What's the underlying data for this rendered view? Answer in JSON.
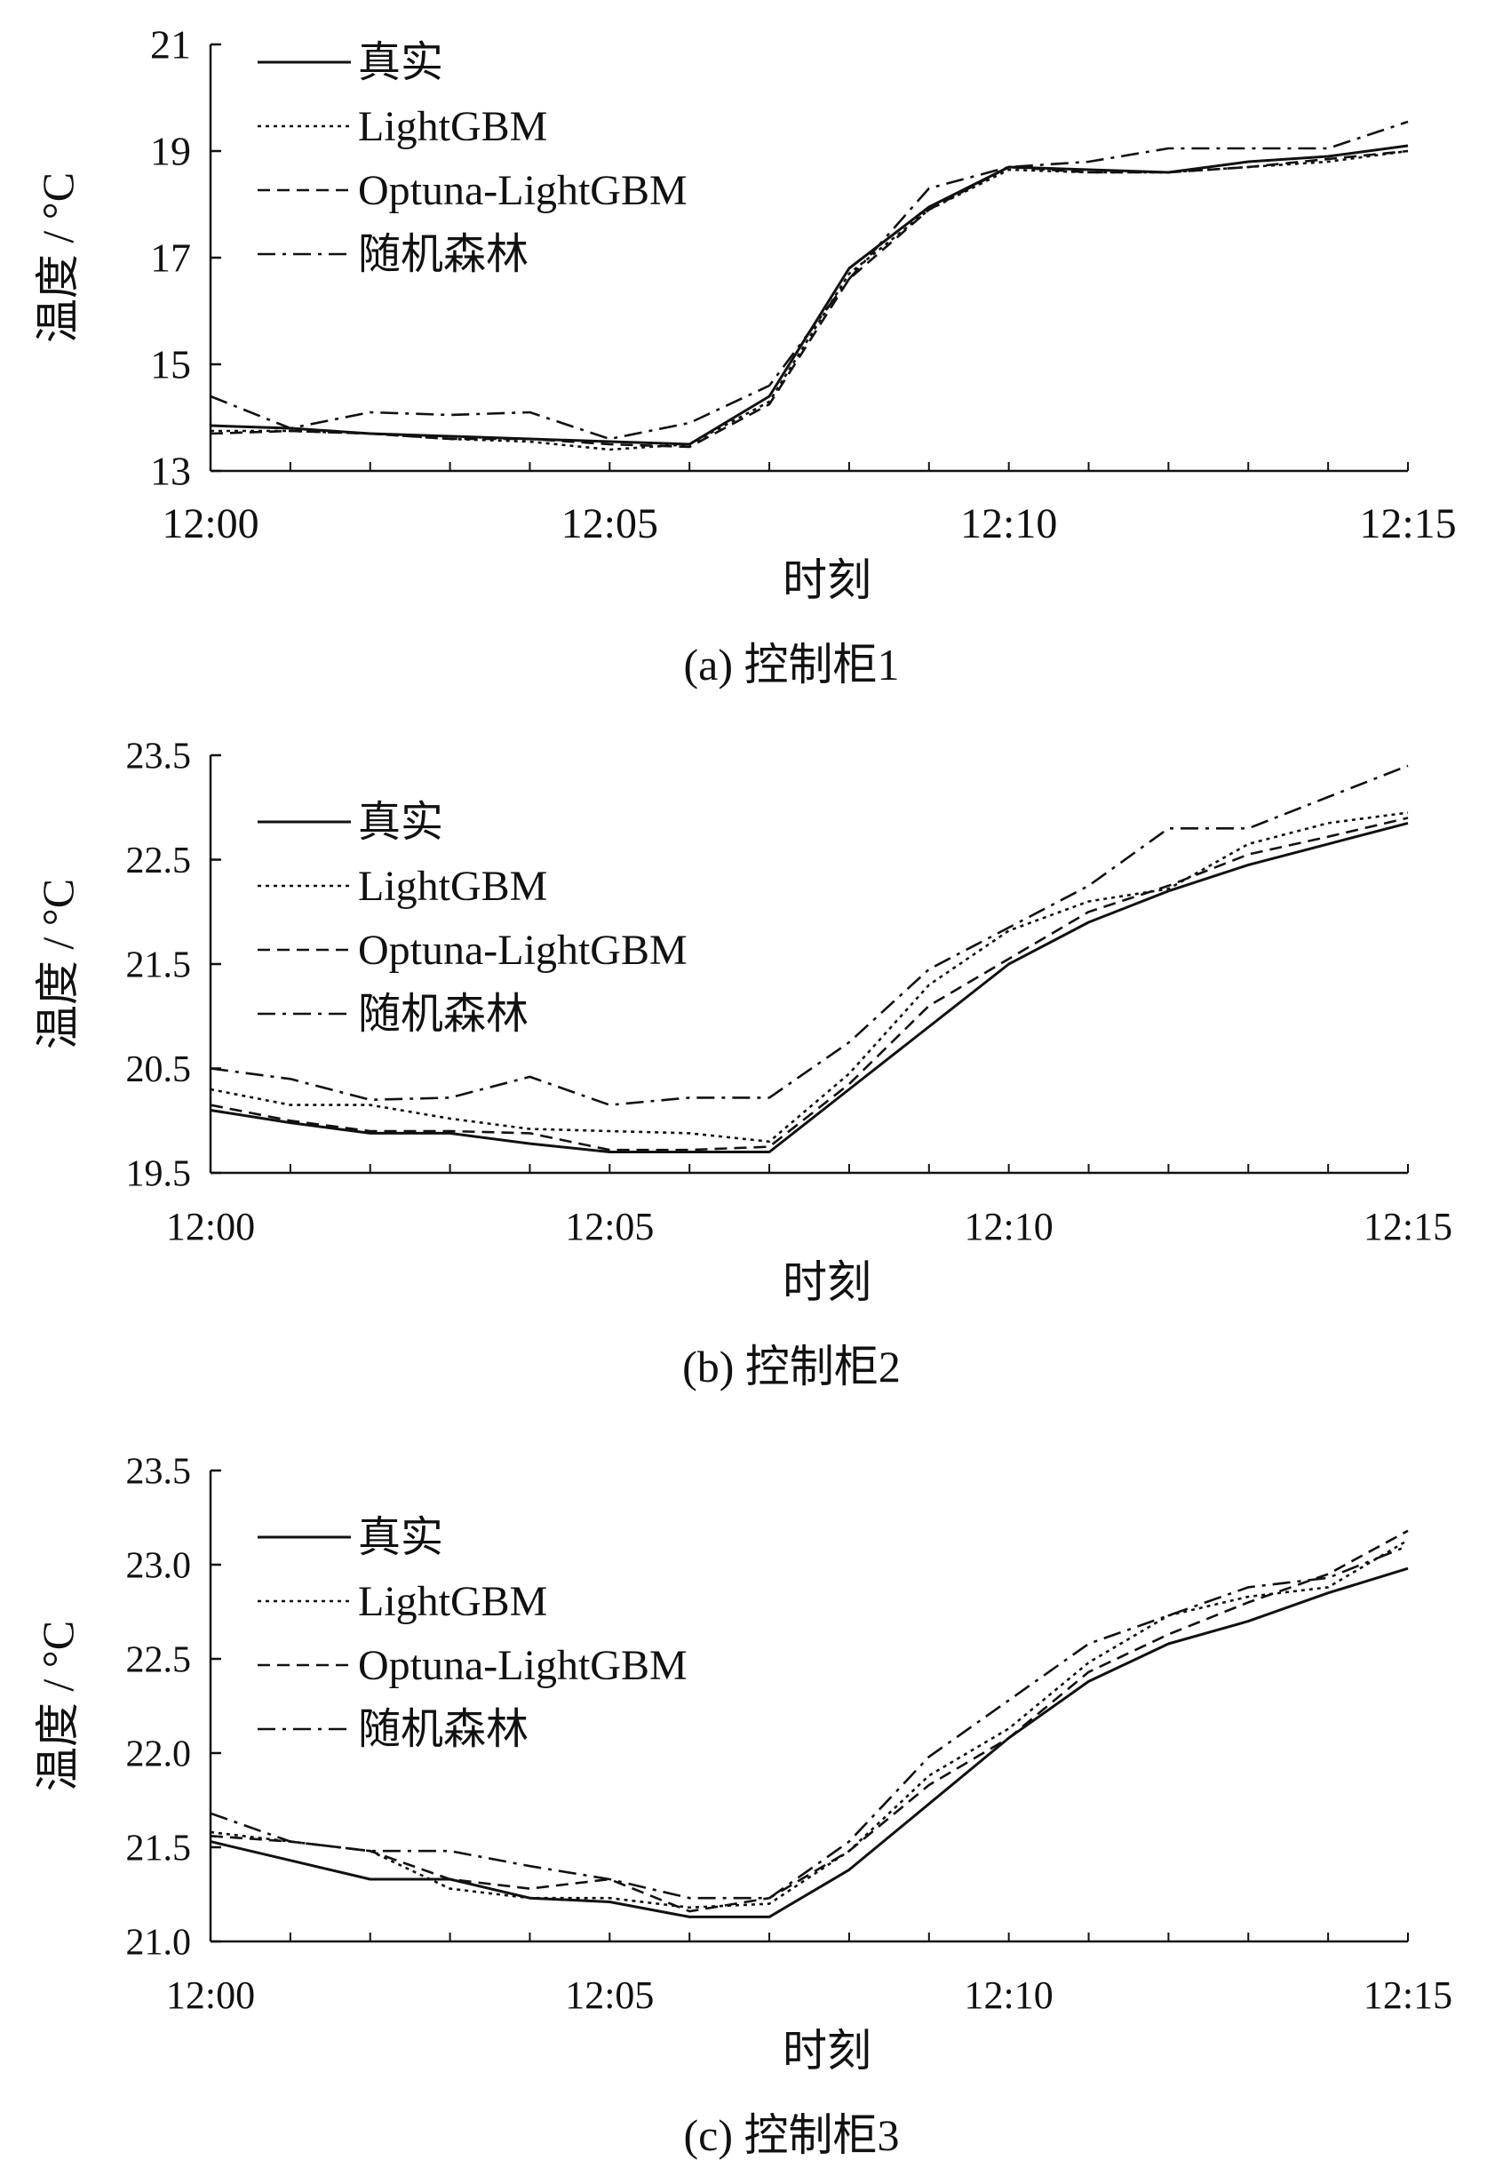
{
  "chart_data": [
    {
      "type": "line",
      "caption": "(a) 控制柜1",
      "xlabel": "时刻",
      "ylabel": "温度 / °C",
      "x": [
        0,
        1,
        2,
        3,
        4,
        5,
        6,
        7,
        8,
        9,
        10,
        11,
        12,
        13,
        14,
        15
      ],
      "xtick_labels": [
        {
          "x": 0,
          "label": "12:00"
        },
        {
          "x": 5,
          "label": "12:05"
        },
        {
          "x": 10,
          "label": "12:10"
        },
        {
          "x": 15,
          "label": "12:15"
        }
      ],
      "yticks": [
        13,
        15,
        17,
        19,
        21
      ],
      "ytick_labels": [
        "13",
        "15",
        "17",
        "19",
        "21"
      ],
      "ylim": [
        13,
        21
      ],
      "series": [
        {
          "name": "真实",
          "style": "solid",
          "values": [
            13.85,
            13.8,
            13.7,
            13.65,
            13.6,
            13.55,
            13.5,
            14.4,
            16.8,
            17.95,
            18.7,
            18.65,
            18.6,
            18.8,
            18.9,
            19.1
          ]
        },
        {
          "name": "LightGBM",
          "style": "dotted",
          "values": [
            13.75,
            13.75,
            13.7,
            13.6,
            13.55,
            13.4,
            13.5,
            14.3,
            16.7,
            17.9,
            18.65,
            18.6,
            18.6,
            18.7,
            18.8,
            19.0
          ]
        },
        {
          "name": "Optuna-LightGBM",
          "style": "dashed",
          "values": [
            13.7,
            13.75,
            13.7,
            13.6,
            13.6,
            13.5,
            13.45,
            14.25,
            16.6,
            17.9,
            18.7,
            18.6,
            18.6,
            18.7,
            18.85,
            19.0
          ]
        },
        {
          "name": "随机森林",
          "style": "dashdot",
          "values": [
            14.4,
            13.8,
            14.1,
            14.05,
            14.1,
            13.6,
            13.9,
            14.6,
            16.6,
            18.3,
            18.7,
            18.8,
            19.05,
            19.05,
            19.05,
            19.55
          ]
        }
      ]
    },
    {
      "type": "line",
      "caption": "(b) 控制柜2",
      "xlabel": "时刻",
      "ylabel": "温度 / °C",
      "x": [
        0,
        1,
        2,
        3,
        4,
        5,
        6,
        7,
        8,
        9,
        10,
        11,
        12,
        13,
        14,
        15
      ],
      "xtick_labels": [
        {
          "x": 0,
          "label": "12:00"
        },
        {
          "x": 5,
          "label": "12:05"
        },
        {
          "x": 10,
          "label": "12:10"
        },
        {
          "x": 15,
          "label": "12:15"
        }
      ],
      "yticks": [
        19.5,
        20.5,
        21.5,
        22.5,
        23.5
      ],
      "ytick_labels": [
        "19.5",
        "20.5",
        "21.5",
        "22.5",
        "23.5"
      ],
      "ylim": [
        19.5,
        23.5
      ],
      "series": [
        {
          "name": "真实",
          "style": "solid",
          "values": [
            20.1,
            19.98,
            19.88,
            19.88,
            19.78,
            19.7,
            19.7,
            19.7,
            20.3,
            20.9,
            21.5,
            21.9,
            22.2,
            22.45,
            22.65,
            22.85
          ]
        },
        {
          "name": "LightGBM",
          "style": "dotted",
          "values": [
            20.3,
            20.15,
            20.15,
            20.02,
            19.92,
            19.9,
            19.88,
            19.8,
            20.45,
            21.3,
            21.82,
            22.1,
            22.22,
            22.65,
            22.85,
            22.95
          ]
        },
        {
          "name": "Optuna-LightGBM",
          "style": "dashed",
          "values": [
            20.15,
            20.0,
            19.9,
            19.9,
            19.88,
            19.72,
            19.72,
            19.75,
            20.35,
            21.1,
            21.55,
            22.0,
            22.25,
            22.55,
            22.72,
            22.9
          ]
        },
        {
          "name": "随机森林",
          "style": "dashdot",
          "values": [
            20.5,
            20.4,
            20.2,
            20.22,
            20.42,
            20.15,
            20.22,
            20.22,
            20.75,
            21.45,
            21.85,
            22.25,
            22.8,
            22.8,
            23.1,
            23.4
          ]
        }
      ]
    },
    {
      "type": "line",
      "caption": "(c) 控制柜3",
      "xlabel": "时刻",
      "ylabel": "温度 / °C",
      "x": [
        0,
        1,
        2,
        3,
        4,
        5,
        6,
        7,
        8,
        9,
        10,
        11,
        12,
        13,
        14,
        15
      ],
      "xtick_labels": [
        {
          "x": 0,
          "label": "12:00"
        },
        {
          "x": 5,
          "label": "12:05"
        },
        {
          "x": 10,
          "label": "12:10"
        },
        {
          "x": 15,
          "label": "12:15"
        }
      ],
      "yticks": [
        21.0,
        21.5,
        22.0,
        22.5,
        23.0,
        23.5
      ],
      "ytick_labels": [
        "21.0",
        "21.5",
        "22.0",
        "22.5",
        "23.0",
        "23.5"
      ],
      "ylim": [
        21.0,
        23.5
      ],
      "series": [
        {
          "name": "真实",
          "style": "solid",
          "values": [
            21.53,
            21.43,
            21.33,
            21.33,
            21.23,
            21.21,
            21.13,
            21.13,
            21.38,
            21.73,
            22.08,
            22.38,
            22.58,
            22.7,
            22.85,
            22.98
          ]
        },
        {
          "name": "LightGBM",
          "style": "dotted",
          "values": [
            21.58,
            21.53,
            21.48,
            21.28,
            21.23,
            21.23,
            21.18,
            21.2,
            21.48,
            21.88,
            22.13,
            22.48,
            22.73,
            22.83,
            22.88,
            23.13
          ]
        },
        {
          "name": "Optuna-LightGBM",
          "style": "dashed",
          "values": [
            21.56,
            21.53,
            21.48,
            21.33,
            21.28,
            21.33,
            21.16,
            21.23,
            21.48,
            21.83,
            22.08,
            22.43,
            22.63,
            22.8,
            22.95,
            23.18
          ]
        },
        {
          "name": "随机森林",
          "style": "dashdot",
          "values": [
            21.68,
            21.53,
            21.48,
            21.48,
            21.4,
            21.33,
            21.23,
            21.23,
            21.53,
            21.98,
            22.28,
            22.58,
            22.73,
            22.88,
            22.93,
            23.1
          ]
        }
      ]
    }
  ]
}
